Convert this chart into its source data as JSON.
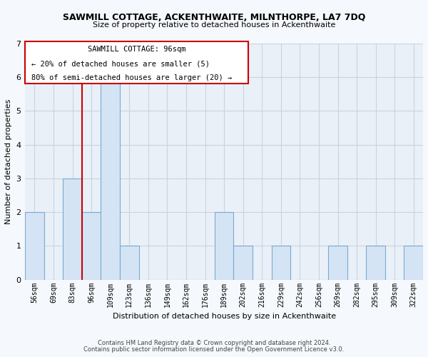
{
  "title1": "SAWMILL COTTAGE, ACKENTHWAITE, MILNTHORPE, LA7 7DQ",
  "title2": "Size of property relative to detached houses in Ackenthwaite",
  "xlabel": "Distribution of detached houses by size in Ackenthwaite",
  "ylabel": "Number of detached properties",
  "bins": [
    "56sqm",
    "69sqm",
    "83sqm",
    "96sqm",
    "109sqm",
    "123sqm",
    "136sqm",
    "149sqm",
    "162sqm",
    "176sqm",
    "189sqm",
    "202sqm",
    "216sqm",
    "229sqm",
    "242sqm",
    "256sqm",
    "269sqm",
    "282sqm",
    "295sqm",
    "309sqm",
    "322sqm"
  ],
  "counts": [
    2,
    0,
    3,
    2,
    6,
    1,
    0,
    0,
    0,
    0,
    2,
    1,
    0,
    1,
    0,
    0,
    1,
    0,
    1,
    0,
    1
  ],
  "bar_color": "#d4e4f4",
  "bar_edge_color": "#7aaad0",
  "property_line_index": 3,
  "annotation_title": "SAWMILL COTTAGE: 96sqm",
  "annotation_line1": "← 20% of detached houses are smaller (5)",
  "annotation_line2": "80% of semi-detached houses are larger (20) →",
  "annotation_box_edge": "#cc0000",
  "property_line_color": "#cc0000",
  "ylim": [
    0,
    7
  ],
  "yticks": [
    0,
    1,
    2,
    3,
    4,
    5,
    6,
    7
  ],
  "footer1": "Contains HM Land Registry data © Crown copyright and database right 2024.",
  "footer2": "Contains public sector information licensed under the Open Government Licence v3.0.",
  "background_color": "#f5f8fc",
  "plot_bg_color": "#eaf0f8",
  "grid_color": "#c8d4e0"
}
